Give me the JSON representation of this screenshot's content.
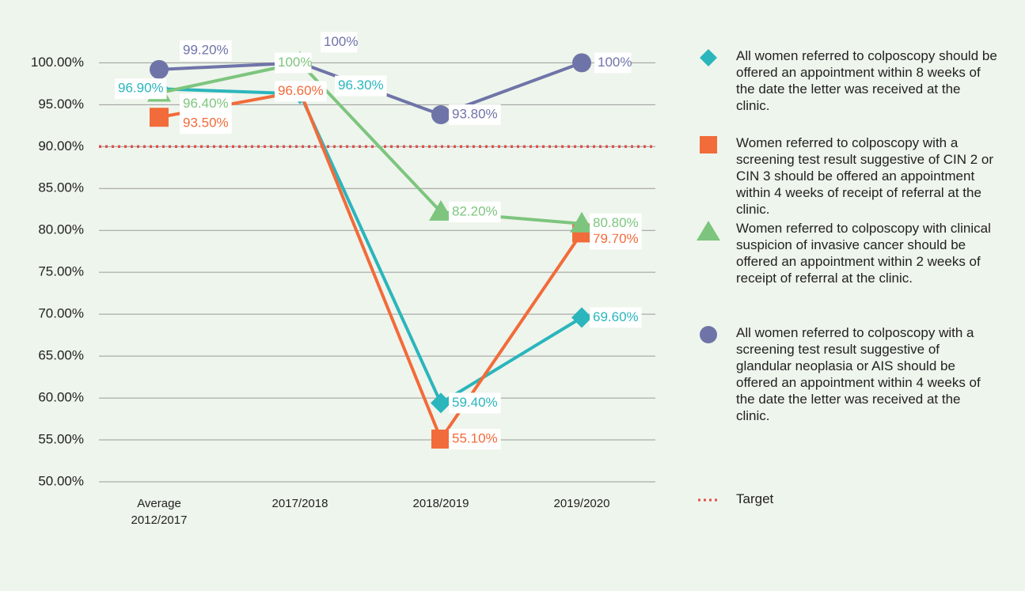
{
  "chart_data": {
    "type": "line",
    "categories": [
      "Average\n2012/2017",
      "2017/2018",
      "2018/2019",
      "2019/2020"
    ],
    "ylim": [
      50,
      104
    ],
    "yticks": [
      {
        "value": 50,
        "label": "50.00%"
      },
      {
        "value": 55,
        "label": "55.00%"
      },
      {
        "value": 60,
        "label": "60.00%"
      },
      {
        "value": 65,
        "label": "65.00%"
      },
      {
        "value": 70,
        "label": "70.00%"
      },
      {
        "value": 75,
        "label": "75.00%"
      },
      {
        "value": 80,
        "label": "80.00%"
      },
      {
        "value": 85,
        "label": "85.00%"
      },
      {
        "value": 90,
        "label": "90.00%"
      },
      {
        "value": 95,
        "label": "95.00%"
      },
      {
        "value": 100,
        "label": "100.00%"
      }
    ],
    "grid": true,
    "series": [
      {
        "name": "All women referred to colposcopy should be offered an appointment within 8 weeks of the date the letter was received at the clinic.",
        "color": "#2bb5bc",
        "marker": "diamond",
        "values": [
          96.9,
          96.3,
          59.4,
          69.6
        ],
        "value_labels": [
          "96.90%",
          "96.30%",
          "59.40%",
          "69.60%"
        ]
      },
      {
        "name": "Women referred to colposcopy with a screening test result suggestive of CIN 2 or CIN 3 should be offered an appointment within 4 weeks of receipt of referral at the clinic.",
        "color": "#f26b3a",
        "marker": "square",
        "values": [
          93.5,
          96.6,
          55.1,
          79.7
        ],
        "value_labels": [
          "93.50%",
          "96.60%",
          "55.10%",
          "79.70%"
        ]
      },
      {
        "name": "Women referred to colposcopy with clinical suspicion of invasive cancer should be offered an appointment within 2 weeks of receipt of referral at the clinic.",
        "color": "#7dc57e",
        "marker": "triangle",
        "values": [
          96.4,
          100,
          82.2,
          80.8
        ],
        "value_labels": [
          "96.40%",
          "100%",
          "82.20%",
          "80.80%"
        ]
      },
      {
        "name": "All women referred to colposcopy with a screening test result suggestive of glandular neoplasia or AIS should be offered an appointment within 4 weeks of the date the letter was received at the clinic.",
        "color": "#6f74a8",
        "marker": "circle",
        "values": [
          99.2,
          100,
          93.8,
          100
        ],
        "value_labels": [
          "99.20%",
          "100%",
          "93.80%",
          "100%"
        ]
      }
    ],
    "target": {
      "name": "Target",
      "value": 90,
      "color": "#e0504a"
    }
  }
}
